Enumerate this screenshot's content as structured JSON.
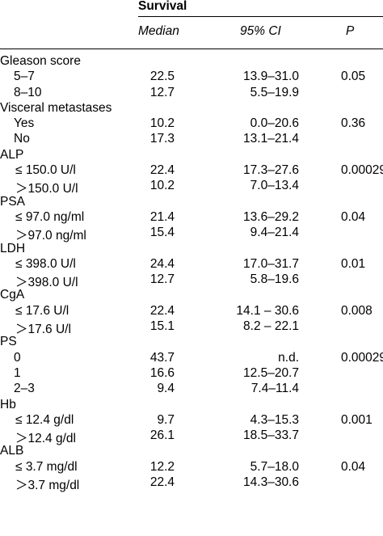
{
  "header": {
    "group": "Survival",
    "columns": {
      "median": "Median",
      "ci": "95% CI",
      "p": "P"
    }
  },
  "rows": [
    {
      "label": "Gleason score",
      "type": "group"
    },
    {
      "label": "5–7",
      "median": "22.5",
      "ci": "13.9–31.0",
      "p": "0.05",
      "type": "sub"
    },
    {
      "label": "8–10",
      "median": "12.7",
      "ci": "5.5–19.9",
      "type": "sub"
    },
    {
      "label": "Visceral metastases",
      "type": "group"
    },
    {
      "label": "Yes",
      "median": "10.2",
      "ci": "0.0–20.6",
      "p": "0.36",
      "type": "sub"
    },
    {
      "label": "No",
      "median": "17.3",
      "ci": "13.1–21.4",
      "type": "sub"
    },
    {
      "label": "ALP",
      "type": "group"
    },
    {
      "label": "≤ 150.0 U/l",
      "median": "22.4",
      "ci": "17.3–27.6",
      "p": "0.00029",
      "type": "sub"
    },
    {
      "label": "＞150.0 U/l",
      "median": "10.2",
      "ci": "7.0–13.4",
      "type": "sub"
    },
    {
      "label": "PSA",
      "type": "group"
    },
    {
      "label": "≤ 97.0 ng/ml",
      "median": "21.4",
      "ci": "13.6–29.2",
      "p": "0.04",
      "type": "sub"
    },
    {
      "label": "＞97.0 ng/ml",
      "median": "15.4",
      "ci": "9.4–21.4",
      "type": "sub"
    },
    {
      "label": "LDH",
      "type": "group"
    },
    {
      "label": "≤ 398.0 U/l",
      "median": "24.4",
      "ci": "17.0–31.7",
      "p": "0.01",
      "type": "sub"
    },
    {
      "label": "＞398.0 U/l",
      "median": "12.7",
      "ci": "5.8–19.6",
      "type": "sub"
    },
    {
      "label": "CgA",
      "type": "group"
    },
    {
      "label": "≤ 17.6 U/l",
      "median": "22.4",
      "ci": "14.1 – 30.6",
      "p": "0.008",
      "type": "sub"
    },
    {
      "label": "＞17.6 U/l",
      "median": "15.1",
      "ci": "8.2 – 22.1",
      "type": "sub"
    },
    {
      "label": "PS",
      "type": "group"
    },
    {
      "label": "0",
      "median": "43.7",
      "ci": "n.d.",
      "p": "0.00029",
      "type": "sub"
    },
    {
      "label": "1",
      "median": "16.6",
      "ci": "12.5–20.7",
      "type": "sub"
    },
    {
      "label": "2–3",
      "median": "9.4",
      "ci": "7.4–11.4",
      "type": "sub"
    },
    {
      "label": "Hb",
      "type": "group"
    },
    {
      "label": "≤ 12.4 g/dl",
      "median": "9.7",
      "ci": "4.3–15.3",
      "p": "0.001",
      "type": "sub"
    },
    {
      "label": "＞12.4 g/dl",
      "median": "26.1",
      "ci": "18.5–33.7",
      "type": "sub"
    },
    {
      "label": "ALB",
      "type": "group"
    },
    {
      "label": "≤ 3.7 mg/dl",
      "median": "12.2",
      "ci": "5.7–18.0",
      "p": "0.04",
      "type": "sub"
    },
    {
      "label": "＞3.7 mg/dl",
      "median": "22.4",
      "ci": "14.3–30.6",
      "type": "sub"
    }
  ]
}
